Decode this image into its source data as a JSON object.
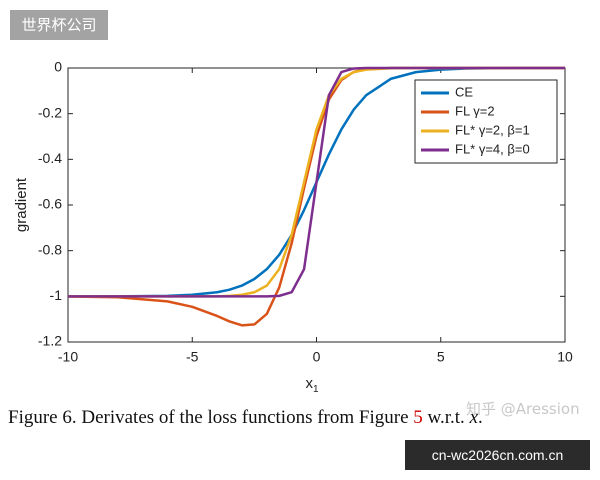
{
  "chart_data": {
    "type": "line",
    "ylabel": "gradient",
    "xlabel": {
      "text": "x",
      "subscript": "1"
    },
    "xlim": [
      -10,
      10
    ],
    "ylim": [
      -1.2,
      0
    ],
    "xticks": [
      -10,
      -5,
      0,
      5,
      10
    ],
    "yticks": [
      0,
      -0.2,
      -0.4,
      -0.6,
      -0.8,
      -1,
      -1.2
    ],
    "grid": false,
    "legend": "upper right",
    "x": [
      -10,
      -8,
      -6,
      -5,
      -4,
      -3.5,
      -3,
      -2.5,
      -2,
      -1.5,
      -1,
      -0.5,
      0,
      0.5,
      1,
      1.5,
      2,
      3,
      4,
      5,
      6,
      8,
      10
    ],
    "series": [
      {
        "name": "CE",
        "color": "#0072bd",
        "values": [
          -1.0,
          -1.0,
          -0.998,
          -0.993,
          -0.982,
          -0.971,
          -0.953,
          -0.924,
          -0.881,
          -0.818,
          -0.731,
          -0.622,
          -0.5,
          -0.378,
          -0.269,
          -0.182,
          -0.119,
          -0.047,
          -0.018,
          -0.007,
          -0.002,
          0,
          0
        ]
      },
      {
        "name": "FL γ=2",
        "color": "#d95319",
        "values": [
          -1.001,
          -1.004,
          -1.022,
          -1.046,
          -1.086,
          -1.11,
          -1.127,
          -1.123,
          -1.077,
          -0.961,
          -0.768,
          -0.526,
          -0.298,
          -0.138,
          -0.053,
          -0.017,
          -0.005,
          0,
          0,
          0,
          0,
          0,
          0
        ]
      },
      {
        "name": "FL* γ=2, β=1",
        "color": "#edb120",
        "values": [
          -1.0,
          -1.0,
          -1.0,
          -1.0,
          -1.0,
          -0.998,
          -0.993,
          -0.982,
          -0.953,
          -0.881,
          -0.731,
          -0.5,
          -0.269,
          -0.119,
          -0.047,
          -0.018,
          -0.007,
          -0.001,
          0,
          0,
          0,
          0,
          0
        ]
      },
      {
        "name": "FL* γ=4, β=0",
        "color": "#7e2f8e",
        "values": [
          -1.0,
          -1.0,
          -1.0,
          -1.0,
          -1.0,
          -1.0,
          -1.0,
          -1.0,
          -1.0,
          -0.998,
          -0.982,
          -0.881,
          -0.5,
          -0.119,
          -0.018,
          -0.002,
          0,
          0,
          0,
          0,
          0,
          0,
          0
        ]
      }
    ]
  },
  "caption": {
    "text_before": "Figure 6. Derivates of the loss functions from Figure ",
    "ref": "5",
    "text_after": " w.r.t. ",
    "var": "x",
    "end": "."
  },
  "watermarks": {
    "top_left": "世界杯公司",
    "bottom_right": "cn-wc2026cn.com.cn",
    "faint": "知乎 @Aression"
  }
}
